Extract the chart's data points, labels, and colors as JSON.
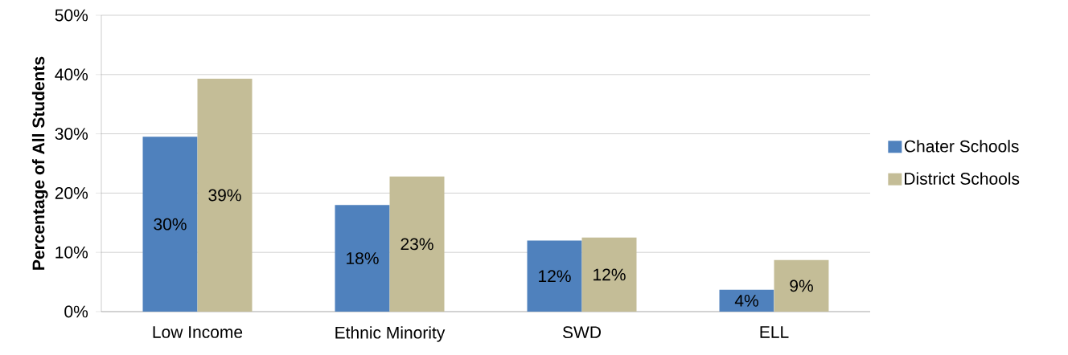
{
  "chart_data": {
    "type": "bar",
    "ylabel": "Percentage of All Students",
    "categories": [
      "Low Income",
      "Ethnic Minority",
      "SWD",
      "ELL"
    ],
    "series": [
      {
        "name": "Chater Schools",
        "color": "#4f81bd",
        "values": [
          29.5,
          18,
          12,
          3.7
        ],
        "value_labels": [
          "30%",
          "18%",
          "12%",
          "4%"
        ]
      },
      {
        "name": "District Schools",
        "color": "#c4bd97",
        "values": [
          39.3,
          22.8,
          12.5,
          8.7
        ],
        "value_labels": [
          "39%",
          "23%",
          "12%",
          "9%"
        ]
      }
    ],
    "ylim": [
      0,
      50
    ],
    "yticks": [
      {
        "value": 0,
        "label": "0%"
      },
      {
        "value": 10,
        "label": "10%"
      },
      {
        "value": 20,
        "label": "20%"
      },
      {
        "value": 30,
        "label": "30%"
      },
      {
        "value": 40,
        "label": "40%"
      },
      {
        "value": 50,
        "label": "50%"
      }
    ],
    "grid": "y",
    "legend": "right"
  }
}
